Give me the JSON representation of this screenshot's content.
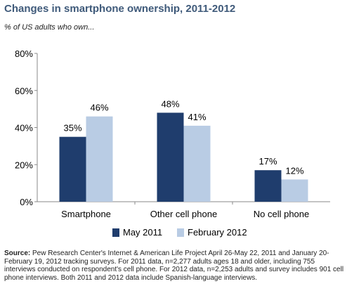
{
  "title": "Changes in smartphone ownership, 2011-2012",
  "subtitle": "% of US adults who own...",
  "colors": {
    "may2011": "#1f3d6d",
    "feb2012": "#b9cce4",
    "title": "#3f5a7a"
  },
  "source": {
    "label": "Source:",
    "text": "Pew Research Center's Internet & American Life Project April 26-May 22, 2011 and January 20-February 19, 2012 tracking surveys. For 2011 data, n=2,277 adults ages 18 and older, including 755 interviews conducted on respondent's cell phone. For 2012 data, n=2,253 adults and survey includes 901 cell phone interviews. Both 2011 and 2012 data include Spanish-language interviews."
  },
  "chart_data": {
    "type": "bar",
    "title": "Changes in smartphone ownership, 2011-2012",
    "subtitle": "% of US adults who own...",
    "categories": [
      "Smartphone",
      "Other cell phone",
      "No cell phone"
    ],
    "series": [
      {
        "name": "May 2011",
        "values": [
          35,
          48,
          17
        ],
        "color": "#1f3d6d"
      },
      {
        "name": "February 2012",
        "values": [
          46,
          41,
          12
        ],
        "color": "#b9cce4"
      }
    ],
    "value_labels": [
      [
        "35%",
        "48%",
        "17%"
      ],
      [
        "46%",
        "41%",
        "12%"
      ]
    ],
    "ylim": [
      0,
      80
    ],
    "yticks": [
      0,
      20,
      40,
      60,
      80
    ],
    "ytick_labels": [
      "0%",
      "20%",
      "40%",
      "60%",
      "80%"
    ],
    "grid": false,
    "legend_position": "bottom"
  }
}
